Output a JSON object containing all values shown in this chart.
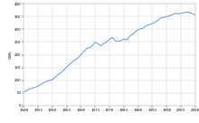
{
  "title": "",
  "ylabel": "GWh",
  "xlabel": "",
  "line_color": "#6699cc",
  "line_width": 0.7,
  "background_color": "#ffffff",
  "grid_color": "#cccccc",
  "ylim": [
    0,
    400
  ],
  "xlim": [
    1948,
    2008
  ],
  "yticks": [
    0,
    50,
    100,
    150,
    200,
    250,
    300,
    350,
    400
  ],
  "xticks": [
    1948,
    1953,
    1958,
    1963,
    1968,
    1973,
    1978,
    1983,
    1988,
    1993,
    1998,
    2003,
    2008
  ],
  "data": [
    [
      1948,
      55
    ],
    [
      1949,
      60
    ],
    [
      1950,
      65
    ],
    [
      1951,
      70
    ],
    [
      1952,
      72
    ],
    [
      1953,
      78
    ],
    [
      1954,
      84
    ],
    [
      1955,
      91
    ],
    [
      1956,
      96
    ],
    [
      1957,
      100
    ],
    [
      1958,
      102
    ],
    [
      1959,
      112
    ],
    [
      1960,
      122
    ],
    [
      1961,
      130
    ],
    [
      1962,
      140
    ],
    [
      1963,
      152
    ],
    [
      1964,
      162
    ],
    [
      1965,
      172
    ],
    [
      1966,
      180
    ],
    [
      1967,
      188
    ],
    [
      1968,
      200
    ],
    [
      1969,
      212
    ],
    [
      1970,
      225
    ],
    [
      1971,
      228
    ],
    [
      1972,
      235
    ],
    [
      1973,
      250
    ],
    [
      1974,
      242
    ],
    [
      1975,
      235
    ],
    [
      1976,
      245
    ],
    [
      1977,
      250
    ],
    [
      1978,
      260
    ],
    [
      1979,
      268
    ],
    [
      1980,
      255
    ],
    [
      1981,
      253
    ],
    [
      1982,
      255
    ],
    [
      1983,
      262
    ],
    [
      1984,
      258
    ],
    [
      1985,
      272
    ],
    [
      1986,
      280
    ],
    [
      1987,
      290
    ],
    [
      1988,
      298
    ],
    [
      1989,
      302
    ],
    [
      1990,
      305
    ],
    [
      1991,
      315
    ],
    [
      1992,
      318
    ],
    [
      1993,
      322
    ],
    [
      1994,
      328
    ],
    [
      1995,
      335
    ],
    [
      1996,
      345
    ],
    [
      1997,
      346
    ],
    [
      1998,
      350
    ],
    [
      1999,
      352
    ],
    [
      2000,
      357
    ],
    [
      2001,
      362
    ],
    [
      2002,
      360
    ],
    [
      2003,
      362
    ],
    [
      2004,
      365
    ],
    [
      2005,
      367
    ],
    [
      2006,
      366
    ],
    [
      2007,
      361
    ],
    [
      2008,
      356
    ]
  ]
}
